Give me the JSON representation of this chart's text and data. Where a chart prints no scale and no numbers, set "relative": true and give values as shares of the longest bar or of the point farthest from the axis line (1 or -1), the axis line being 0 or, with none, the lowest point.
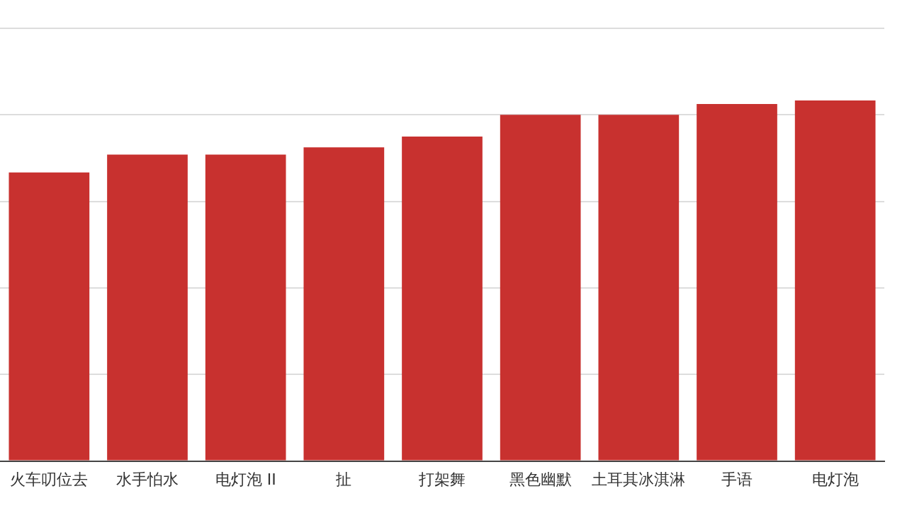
{
  "chart_data": {
    "type": "bar",
    "relative": true,
    "grid": "y",
    "color": "#c8312f",
    "categories": [
      "火车叨位去",
      "水手怕水",
      "电灯泡 II",
      "扯",
      "打架舞",
      "黑色幽默",
      "土耳其冰淇淋",
      "手语",
      "电灯泡"
    ],
    "values": [
      0.8,
      0.85,
      0.85,
      0.87,
      0.9,
      0.96,
      0.96,
      0.99,
      1
    ]
  }
}
